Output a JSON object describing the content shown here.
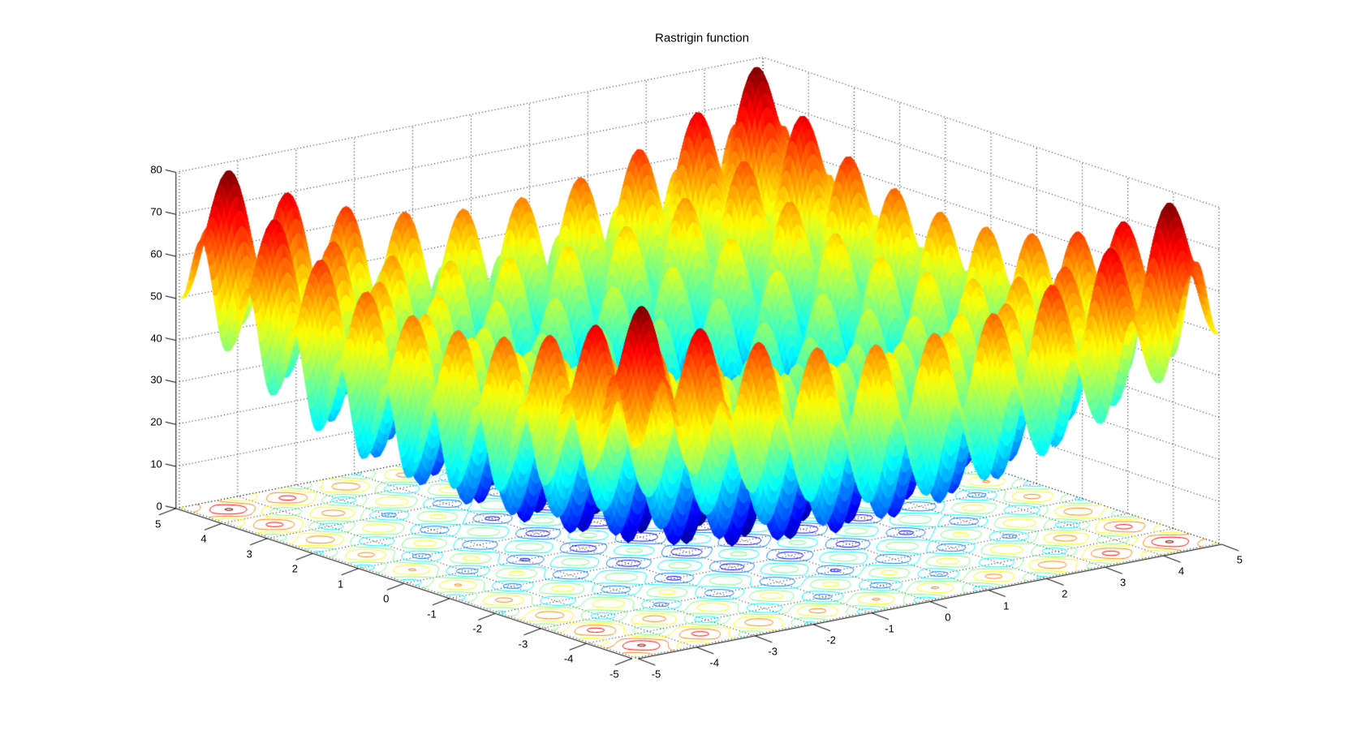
{
  "chart_data": {
    "type": "surface",
    "subtype": "3d-surface-with-floor-contour",
    "title": "Rastrigin function",
    "formula": "f(x,y) = 20 + x^2 + y^2 - 10*(cos(2*pi*x) + cos(2*pi*y))",
    "x_range": [
      -5,
      5
    ],
    "y_range": [
      -5,
      5
    ],
    "z_range": [
      0,
      80
    ],
    "x_ticks": [
      -5,
      -4,
      -3,
      -2,
      -1,
      0,
      1,
      2,
      3,
      4,
      5
    ],
    "y_ticks": [
      -5,
      -4,
      -3,
      -2,
      -1,
      0,
      1,
      2,
      3,
      4,
      5
    ],
    "z_ticks": [
      0,
      10,
      20,
      30,
      40,
      50,
      60,
      70,
      80
    ],
    "grid_step": 0.05,
    "colormap": "jet",
    "colormap_levels": 64,
    "color_scale": [
      0,
      80.5
    ],
    "contour_levels": [
      10,
      20,
      30,
      40,
      50,
      60,
      70,
      80
    ],
    "view": {
      "azimuth": -37.5,
      "elevation": 30,
      "projection": "orthographic"
    },
    "grid_line_style": "dotted",
    "background_color": "#ffffff",
    "axis_color": "#000000",
    "text_color": "#000000"
  }
}
